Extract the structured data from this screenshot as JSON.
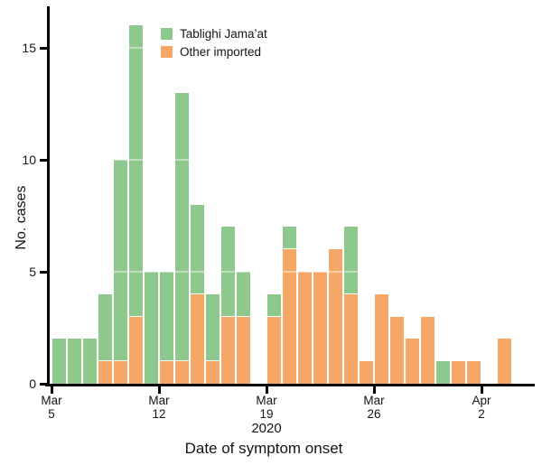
{
  "figure": {
    "ylabel": "No. cases",
    "xlabel": "Date of symptom onset",
    "year_label": "2020"
  },
  "legend": {
    "items": [
      {
        "label": "Tablighi Jama’at",
        "color": "#8dc88d"
      },
      {
        "label": "Other imported",
        "color": "#f7a765"
      }
    ]
  },
  "chart_data": {
    "type": "bar",
    "stacked": true,
    "title": "",
    "xlabel": "Date of symptom onset",
    "ylabel": "No. cases",
    "x_axis_year_label": "2020",
    "grid": "white gridlines over bars at y ticks",
    "legend_position": "top-left-inside",
    "ylim": [
      0,
      16.8
    ],
    "yticks": [
      0,
      5,
      10,
      15
    ],
    "categories": [
      "Mar 5",
      "Mar 6",
      "Mar 7",
      "Mar 8",
      "Mar 9",
      "Mar 10",
      "Mar 11",
      "Mar 12",
      "Mar 13",
      "Mar 14",
      "Mar 15",
      "Mar 16",
      "Mar 17",
      "Mar 18",
      "Mar 19",
      "Mar 20",
      "Mar 21",
      "Mar 22",
      "Mar 23",
      "Mar 24",
      "Mar 25",
      "Mar 26",
      "Mar 27",
      "Mar 28",
      "Mar 29",
      "Mar 30",
      "Mar 31",
      "Apr 1",
      "Apr 2",
      "Apr 3"
    ],
    "series": [
      {
        "name": "Other imported",
        "color": "#f7a765",
        "stack_position": "bottom",
        "values": [
          0,
          0,
          0,
          1,
          1,
          3,
          0,
          1,
          1,
          4,
          1,
          3,
          3,
          0,
          3,
          6,
          5,
          5,
          6,
          4,
          1,
          4,
          3,
          2,
          3,
          0,
          1,
          1,
          0,
          2
        ]
      },
      {
        "name": "Tablighi Jama’at",
        "color": "#8dc88d",
        "stack_position": "top",
        "values": [
          2,
          2,
          2,
          3,
          9,
          13,
          5,
          4,
          12,
          4,
          3,
          4,
          2,
          0,
          1,
          1,
          0,
          0,
          0,
          3,
          0,
          0,
          0,
          0,
          0,
          1,
          0,
          0,
          0,
          0
        ]
      }
    ],
    "totals": [
      2,
      2,
      2,
      4,
      10,
      16,
      5,
      5,
      13,
      8,
      4,
      7,
      5,
      0,
      4,
      7,
      5,
      5,
      6,
      7,
      1,
      4,
      3,
      2,
      3,
      1,
      1,
      1,
      0,
      2
    ],
    "xticks": [
      {
        "index": 0,
        "month": "Mar",
        "day": "5"
      },
      {
        "index": 7,
        "month": "Mar",
        "day": "12"
      },
      {
        "index": 14,
        "month": "Mar",
        "day": "19"
      },
      {
        "index": 21,
        "month": "Mar",
        "day": "26"
      },
      {
        "index": 28,
        "month": "Apr",
        "day": "2"
      }
    ]
  }
}
